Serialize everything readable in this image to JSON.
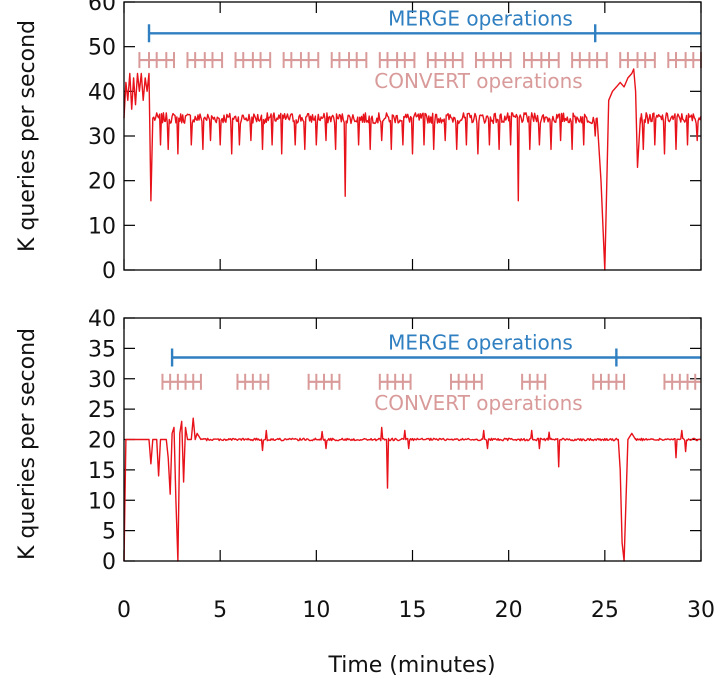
{
  "colors": {
    "series": "#e8121a",
    "merge": "#2f7fc1",
    "convert": "#d99a9a"
  },
  "chart_data": [
    {
      "type": "line",
      "ylabel": "K queries per second",
      "xlim": [
        0,
        30
      ],
      "ylim": [
        0,
        60
      ],
      "yticks": [
        0,
        10,
        20,
        30,
        40,
        50,
        60
      ],
      "xticks": [
        0,
        5,
        10,
        15,
        20,
        25,
        30
      ],
      "show_x_tick_labels": false,
      "merge": {
        "label": "MERGE operations",
        "y": 53,
        "start": 1.3,
        "marks": [
          1.3,
          24.5
        ],
        "end": 30
      },
      "convert": {
        "label": "CONVERT operations",
        "y": 47,
        "ticks": [
          0.8,
          1.3,
          1.7,
          2.2,
          2.6,
          3.3,
          3.7,
          4.2,
          4.6,
          5.1,
          5.8,
          6.2,
          6.7,
          7.1,
          7.6,
          8.3,
          8.7,
          9.2,
          9.6,
          10.1,
          10.8,
          11.2,
          11.7,
          12.1,
          12.6,
          13.3,
          13.7,
          14.2,
          14.6,
          15.1,
          15.8,
          16.2,
          16.7,
          17.1,
          17.6,
          18.3,
          18.7,
          19.2,
          19.6,
          20.1,
          20.8,
          21.2,
          21.7,
          22.1,
          22.6,
          23.3,
          23.7,
          24.2,
          24.6,
          25.1,
          25.8,
          26.2,
          26.7,
          27.1,
          27.6,
          28.3,
          28.7,
          29.2,
          29.6,
          30.0
        ],
        "segments": [
          [
            0.8,
            2.6
          ],
          [
            3.3,
            5.1
          ],
          [
            5.8,
            7.6
          ],
          [
            8.3,
            10.1
          ],
          [
            10.8,
            12.6
          ],
          [
            13.3,
            15.1
          ],
          [
            15.8,
            17.6
          ],
          [
            18.3,
            20.1
          ],
          [
            20.8,
            22.6
          ],
          [
            23.3,
            25.1
          ],
          [
            25.8,
            27.6
          ],
          [
            28.3,
            30.0
          ]
        ]
      },
      "series": {
        "base": 34,
        "noise": 1.2,
        "start_points": [
          [
            0,
            34
          ],
          [
            0.1,
            42
          ],
          [
            0.2,
            38
          ],
          [
            0.3,
            44
          ],
          [
            0.4,
            36
          ],
          [
            0.5,
            43
          ],
          [
            0.6,
            37
          ],
          [
            0.7,
            44
          ],
          [
            0.8,
            40
          ],
          [
            0.9,
            44
          ],
          [
            1.0,
            38
          ],
          [
            1.1,
            43
          ],
          [
            1.2,
            40
          ],
          [
            1.3,
            44
          ],
          [
            1.4,
            15.5
          ],
          [
            1.5,
            34
          ]
        ],
        "dips": [
          [
            1.9,
            28
          ],
          [
            2.3,
            27
          ],
          [
            2.8,
            26
          ],
          [
            3.5,
            28
          ],
          [
            4.1,
            27
          ],
          [
            4.5,
            29
          ],
          [
            5.0,
            28
          ],
          [
            5.6,
            26
          ],
          [
            6.0,
            28
          ],
          [
            6.6,
            29
          ],
          [
            7.2,
            27
          ],
          [
            7.7,
            28
          ],
          [
            8.2,
            26
          ],
          [
            8.9,
            28
          ],
          [
            9.4,
            27
          ],
          [
            10.0,
            28
          ],
          [
            10.5,
            29
          ],
          [
            11.0,
            27
          ],
          [
            11.5,
            16.5
          ],
          [
            12.2,
            28
          ],
          [
            12.8,
            27
          ],
          [
            13.4,
            29
          ],
          [
            13.9,
            27
          ],
          [
            14.5,
            28
          ],
          [
            15.0,
            26
          ],
          [
            15.6,
            28
          ],
          [
            16.1,
            27
          ],
          [
            16.7,
            29
          ],
          [
            17.3,
            27
          ],
          [
            17.8,
            28
          ],
          [
            18.4,
            26
          ],
          [
            19.0,
            28
          ],
          [
            19.5,
            27
          ],
          [
            20.1,
            28
          ],
          [
            20.5,
            15.5
          ],
          [
            21.1,
            27
          ],
          [
            21.6,
            28
          ],
          [
            22.2,
            27
          ],
          [
            22.7,
            29
          ],
          [
            23.3,
            27
          ],
          [
            23.9,
            28
          ],
          [
            24.5,
            30
          ],
          [
            27.0,
            27
          ],
          [
            27.6,
            28
          ],
          [
            28.1,
            26
          ],
          [
            28.7,
            27
          ],
          [
            29.3,
            28
          ],
          [
            29.8,
            29
          ]
        ],
        "event_points": [
          [
            24.6,
            34
          ],
          [
            24.8,
            20
          ],
          [
            25.0,
            0
          ],
          [
            25.2,
            38
          ],
          [
            25.4,
            40
          ],
          [
            25.6,
            41
          ],
          [
            25.8,
            42
          ],
          [
            26.0,
            41
          ],
          [
            26.2,
            43
          ],
          [
            26.4,
            44
          ],
          [
            26.5,
            45
          ],
          [
            26.6,
            40
          ],
          [
            26.7,
            23
          ],
          [
            26.85,
            34
          ]
        ],
        "event_range": [
          24.6,
          26.85
        ]
      }
    },
    {
      "type": "line",
      "ylabel": "K queries per second",
      "xlabel": "Time (minutes)",
      "xlim": [
        0,
        30
      ],
      "ylim": [
        0,
        40
      ],
      "yticks": [
        0,
        5,
        10,
        15,
        20,
        25,
        30,
        35,
        40
      ],
      "xticks": [
        0,
        5,
        10,
        15,
        20,
        25,
        30
      ],
      "show_x_tick_labels": true,
      "merge": {
        "label": "MERGE operations",
        "y": 33.5,
        "start": 2.5,
        "marks": [
          2.5,
          25.6
        ],
        "end": 30
      },
      "convert": {
        "label": "CONVERT operations",
        "y": 29.5,
        "ticks": [
          2.0,
          2.4,
          2.8,
          3.2,
          3.6,
          4.0,
          5.9,
          6.3,
          6.7,
          7.1,
          7.5,
          9.6,
          10.0,
          10.4,
          10.8,
          11.2,
          13.3,
          13.7,
          14.1,
          14.5,
          14.9,
          17.0,
          17.4,
          17.8,
          18.2,
          18.6,
          20.7,
          21.1,
          21.5,
          21.9,
          24.4,
          24.8,
          25.2,
          25.6,
          26.0,
          28.1,
          28.5,
          28.9,
          29.3,
          29.7
        ],
        "segments": [
          [
            2.0,
            4.0
          ],
          [
            5.9,
            7.5
          ],
          [
            9.6,
            11.2
          ],
          [
            13.3,
            14.9
          ],
          [
            17.0,
            18.6
          ],
          [
            20.7,
            21.9
          ],
          [
            24.4,
            26.0
          ],
          [
            28.1,
            30.0
          ]
        ]
      },
      "series": {
        "base": 20,
        "noise": 0.2,
        "start_points": [
          [
            0,
            0
          ],
          [
            0.1,
            20
          ],
          [
            1.3,
            20
          ],
          [
            1.4,
            16
          ],
          [
            1.5,
            20
          ],
          [
            1.7,
            20
          ],
          [
            1.8,
            14
          ],
          [
            1.9,
            20
          ],
          [
            2.2,
            20
          ],
          [
            2.3,
            17
          ],
          [
            2.4,
            11
          ],
          [
            2.5,
            21
          ],
          [
            2.6,
            22
          ],
          [
            2.7,
            10
          ],
          [
            2.8,
            0
          ],
          [
            2.9,
            21
          ],
          [
            3.0,
            23
          ],
          [
            3.1,
            13
          ],
          [
            3.2,
            22
          ],
          [
            3.3,
            20
          ],
          [
            3.5,
            20
          ],
          [
            3.6,
            23.5
          ],
          [
            3.7,
            20
          ],
          [
            3.8,
            21
          ],
          [
            4.0,
            20
          ]
        ],
        "dips": [
          [
            7.2,
            18.2
          ],
          [
            10.5,
            18.5
          ],
          [
            13.7,
            12
          ],
          [
            14.8,
            18.5
          ],
          [
            18.9,
            18.5
          ],
          [
            21.6,
            18.5
          ],
          [
            22.6,
            15.5
          ],
          [
            28.7,
            17
          ],
          [
            29.2,
            18
          ]
        ],
        "bumps": [
          [
            7.4,
            21.5
          ],
          [
            10.3,
            21.3
          ],
          [
            13.4,
            22
          ],
          [
            14.6,
            21.5
          ],
          [
            18.7,
            21.5
          ],
          [
            21.2,
            21.5
          ],
          [
            22.1,
            21.2
          ],
          [
            29.0,
            21.5
          ]
        ],
        "event_points": [
          [
            25.7,
            20
          ],
          [
            25.8,
            15
          ],
          [
            25.9,
            3
          ],
          [
            26.0,
            0
          ],
          [
            26.1,
            10
          ],
          [
            26.2,
            20
          ],
          [
            26.4,
            21
          ],
          [
            26.6,
            20
          ]
        ],
        "event_range": [
          25.7,
          26.6
        ]
      }
    }
  ]
}
